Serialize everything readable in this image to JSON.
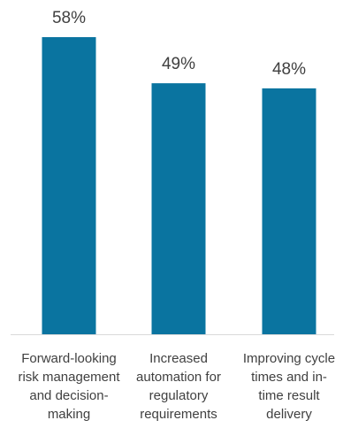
{
  "chart_data": {
    "type": "bar",
    "categories": [
      [
        "Forward-looking",
        "risk management",
        "and decision-",
        "making"
      ],
      [
        "Increased",
        "automation for",
        "regulatory",
        "requirements"
      ],
      [
        "Improving cycle",
        "times and in-",
        "time result",
        "delivery"
      ]
    ],
    "values": [
      58,
      49,
      48
    ],
    "value_labels": [
      "58%",
      "49%",
      "48%"
    ],
    "title": "",
    "xlabel": "",
    "ylabel": "",
    "ylim": [
      0,
      58
    ],
    "grid": false,
    "legend": "none",
    "colors": {
      "bar": "#0a74a0",
      "axis": "#d9d9d9",
      "text": "#404040"
    }
  }
}
